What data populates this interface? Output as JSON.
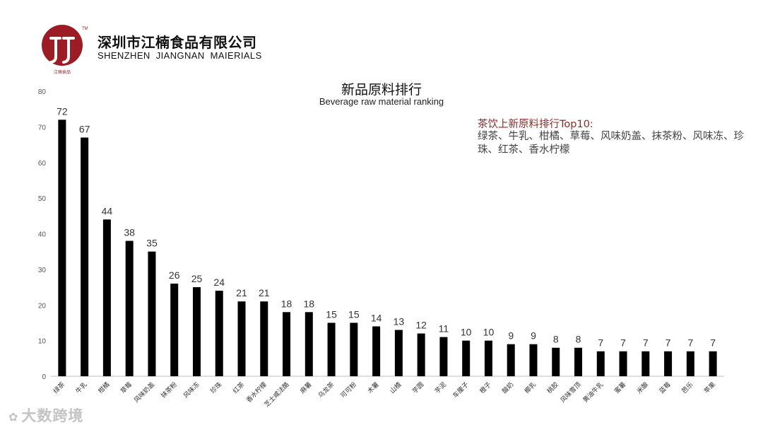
{
  "header": {
    "company_cn": "深圳市江楠食品有限公司",
    "company_en": "SHENZHEN  JIANGNAN  MAIERIALS",
    "logo_trademark": "TM",
    "logo_caption": "江楠食品"
  },
  "annotation": {
    "heading": "茶饮上新原料排行Top10:",
    "body": "绿茶、牛乳、柑橘、草莓、风味奶盖、抹茶粉、风味冻、珍珠、红茶、香水柠檬"
  },
  "watermark": {
    "icon": "watermark-logo-icon",
    "text": "大数跨境"
  },
  "colors": {
    "bar": "#000000",
    "annotation_heading": "#8a2b2b",
    "logo": "#9b1c24"
  },
  "chart_data": {
    "type": "bar",
    "title": "新品原料排行",
    "subtitle": "Beverage raw material ranking",
    "xlabel": "",
    "ylabel": "",
    "ylim": [
      0,
      80
    ],
    "yticks": [
      0,
      10,
      20,
      30,
      40,
      50,
      60,
      70,
      80
    ],
    "grid": false,
    "categories": [
      "绿茶",
      "牛乳",
      "柑橘",
      "草莓",
      "风味奶盖",
      "抹茶粉",
      "风味冻",
      "珍珠",
      "红茶",
      "香水柠檬",
      "芝士咸法酪",
      "麻薯",
      "乌龙茶",
      "可可粉",
      "木薯",
      "山楂",
      "芋圆",
      "芋泥",
      "车厘子",
      "橙子",
      "酸奶",
      "椰乳",
      "桃胶",
      "风味雪顶",
      "黄油牛乳",
      "蜜薯",
      "米酿",
      "蓝莓",
      "芭乐",
      "苹果"
    ],
    "values": [
      72,
      67,
      44,
      38,
      35,
      26,
      25,
      24,
      21,
      21,
      18,
      18,
      15,
      15,
      14,
      13,
      12,
      11,
      10,
      10,
      9,
      9,
      8,
      8,
      7,
      7,
      7,
      7,
      7,
      7
    ]
  }
}
